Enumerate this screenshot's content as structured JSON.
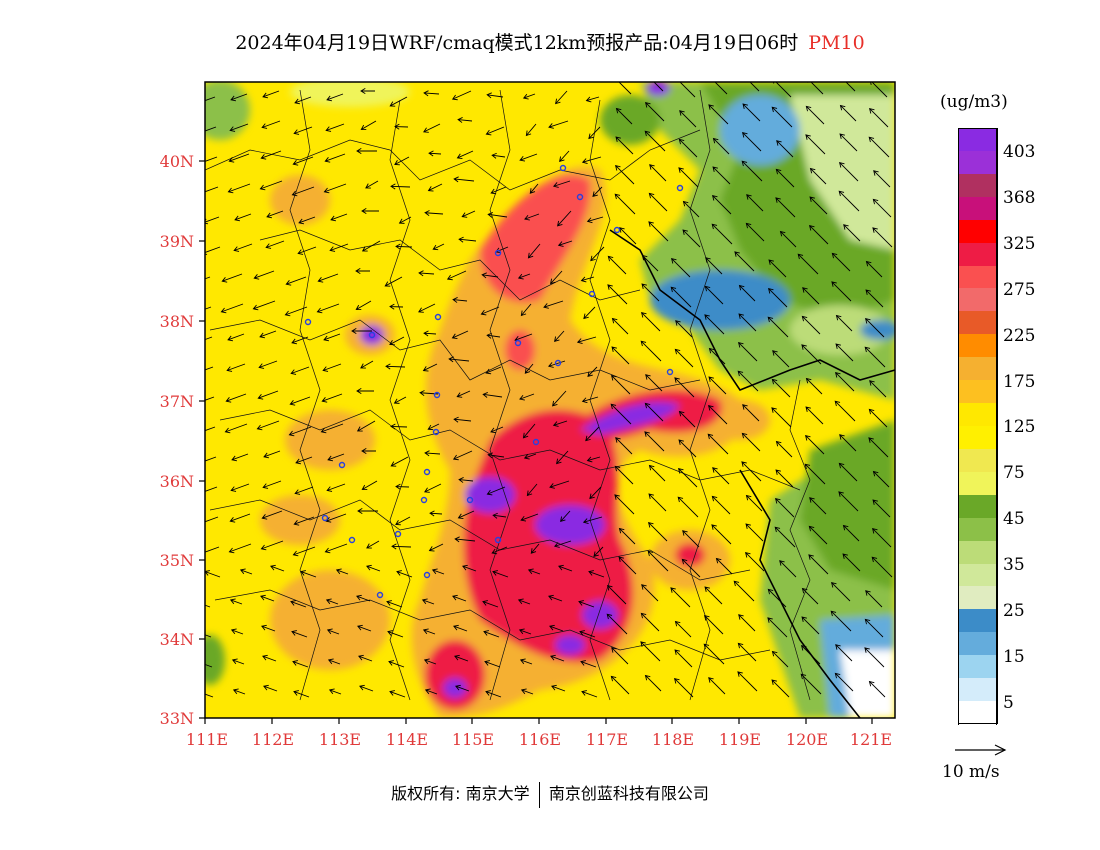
{
  "title": {
    "main": "2024年04月19日WRF/cmaq模式12km预报产品:04月19日06时",
    "pollutant": "PM10",
    "pollutant_color": "#e8302a"
  },
  "map": {
    "lat_labels": [
      "40N",
      "39N",
      "38N",
      "37N",
      "36N",
      "35N",
      "34N",
      "33N"
    ],
    "lon_labels": [
      "111E",
      "112E",
      "113E",
      "114E",
      "115E",
      "116E",
      "117E",
      "118E",
      "119E",
      "120E",
      "121E"
    ],
    "label_color": "#e03a3a"
  },
  "legend": {
    "unit": "(ug/m3)",
    "colors": [
      "#8a2be2",
      "#9b30d8",
      "#b03060",
      "#c8107a",
      "#ff0000",
      "#ee1c45",
      "#fa5050",
      "#f26a6a",
      "#e85a28",
      "#ff8c00",
      "#f5b030",
      "#fdc020",
      "#ffe800",
      "#fff000",
      "#f0e850",
      "#f0f45a",
      "#6aa828",
      "#8cc048",
      "#bcdc78",
      "#d0e89a",
      "#e0ecc0",
      "#3c8cc8",
      "#64acdc",
      "#9cd4f0",
      "#d4ecfa",
      "#ffffff"
    ],
    "labels": [
      "403",
      "368",
      "325",
      "275",
      "225",
      "175",
      "125",
      "75",
      "45",
      "35",
      "25",
      "15",
      "5"
    ]
  },
  "wind": {
    "label": "10 m/s"
  },
  "footer": {
    "rights": "版权所有:",
    "org1": "南京大学",
    "org2": "南京创蓝科技有限公司"
  }
}
